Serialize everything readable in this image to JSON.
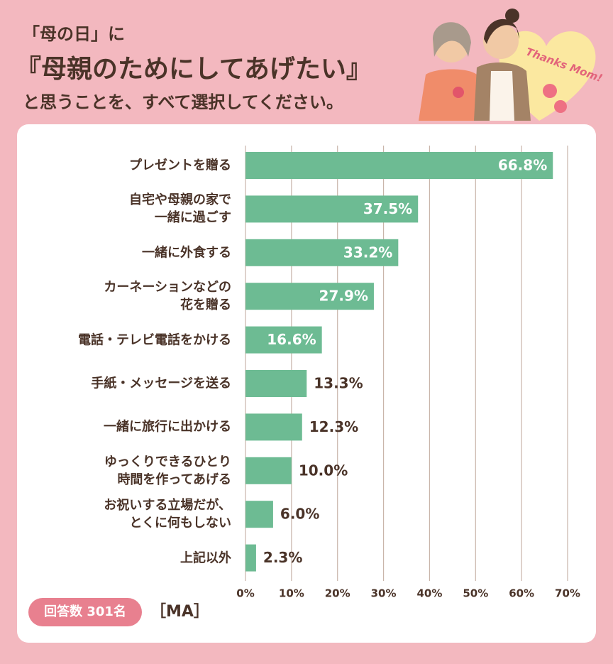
{
  "title": [
    "「母の日」に",
    "『母親のためにしてあげたい』",
    "と思うことを、すべて選択してください。"
  ],
  "illustration_text": "Thanks Mom!",
  "chart_data": {
    "type": "bar",
    "orientation": "horizontal",
    "categories": [
      "プレゼントを贈る",
      "自宅や母親の家で\n一緒に過ごす",
      "一緒に外食する",
      "カーネーションなどの\n花を贈る",
      "電話・テレビ電話をかける",
      "手紙・メッセージを送る",
      "一緒に旅行に出かける",
      "ゆっくりできるひとり\n時間を作ってあげる",
      "お祝いする立場だが、\nとくに何もしない",
      "上記以外"
    ],
    "values": [
      66.8,
      37.5,
      33.2,
      27.9,
      16.6,
      13.3,
      12.3,
      10.0,
      6.0,
      2.3
    ],
    "value_labels": [
      "66.8%",
      "37.5%",
      "33.2%",
      "27.9%",
      "16.6%",
      "13.3%",
      "12.3%",
      "10.0%",
      "6.0%",
      "2.3%"
    ],
    "color": "#6dbb93",
    "xlim": [
      0,
      70
    ],
    "xticks": [
      {
        "value": 0,
        "label": "0%"
      },
      {
        "value": 10,
        "label": "10%"
      },
      {
        "value": 20,
        "label": "20%"
      },
      {
        "value": 30,
        "label": "30%"
      },
      {
        "value": 40,
        "label": "40%"
      },
      {
        "value": 50,
        "label": "50%"
      },
      {
        "value": 60,
        "label": "60%"
      },
      {
        "value": 70,
        "label": "70%"
      }
    ],
    "grid": true,
    "note": "回答数 301名",
    "note2": "［MA］"
  }
}
